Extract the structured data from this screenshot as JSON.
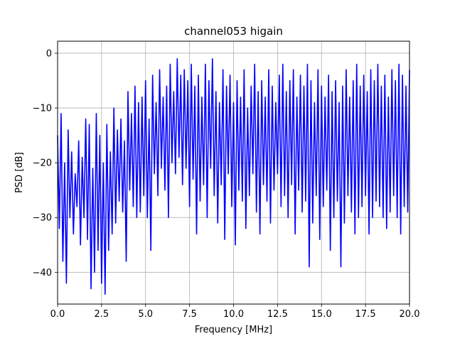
{
  "chart_data": {
    "type": "line",
    "title": "channel053 higain",
    "xlabel": "Frequency [MHz]",
    "ylabel": "PSD [dB]",
    "xlim": [
      0,
      20
    ],
    "ylim": [
      -45.8,
      2.2
    ],
    "grid": true,
    "series": [
      {
        "color": "#0000ff",
        "x": [
          0.0,
          0.1,
          0.2,
          0.3,
          0.4,
          0.5,
          0.6,
          0.7,
          0.8,
          0.9,
          1.0,
          1.1,
          1.2,
          1.3,
          1.4,
          1.5,
          1.6,
          1.7,
          1.8,
          1.9,
          2.0,
          2.1,
          2.2,
          2.3,
          2.4,
          2.5,
          2.6,
          2.7,
          2.8,
          2.9,
          3.0,
          3.1,
          3.2,
          3.3,
          3.4,
          3.5,
          3.6,
          3.7,
          3.8,
          3.9,
          4.0,
          4.1,
          4.2,
          4.3,
          4.4,
          4.5,
          4.6,
          4.7,
          4.8,
          4.9,
          5.0,
          5.1,
          5.2,
          5.3,
          5.4,
          5.5,
          5.6,
          5.7,
          5.8,
          5.9,
          6.0,
          6.1,
          6.2,
          6.3,
          6.4,
          6.5,
          6.6,
          6.7,
          6.8,
          6.9,
          7.0,
          7.1,
          7.2,
          7.3,
          7.4,
          7.5,
          7.6,
          7.7,
          7.8,
          7.9,
          8.0,
          8.1,
          8.2,
          8.3,
          8.4,
          8.5,
          8.6,
          8.7,
          8.8,
          8.9,
          9.0,
          9.1,
          9.2,
          9.3,
          9.4,
          9.5,
          9.6,
          9.7,
          9.8,
          9.9,
          10.0,
          10.1,
          10.2,
          10.3,
          10.4,
          10.5,
          10.6,
          10.7,
          10.8,
          10.9,
          11.0,
          11.1,
          11.2,
          11.3,
          11.4,
          11.5,
          11.6,
          11.7,
          11.8,
          11.9,
          12.0,
          12.1,
          12.2,
          12.3,
          12.4,
          12.5,
          12.6,
          12.7,
          12.8,
          12.9,
          13.0,
          13.1,
          13.2,
          13.3,
          13.4,
          13.5,
          13.6,
          13.7,
          13.8,
          13.9,
          14.0,
          14.1,
          14.2,
          14.3,
          14.4,
          14.5,
          14.6,
          14.7,
          14.8,
          14.9,
          15.0,
          15.1,
          15.2,
          15.3,
          15.4,
          15.5,
          15.6,
          15.7,
          15.8,
          15.9,
          16.0,
          16.1,
          16.2,
          16.3,
          16.4,
          16.5,
          16.6,
          16.7,
          16.8,
          16.9,
          17.0,
          17.1,
          17.2,
          17.3,
          17.4,
          17.5,
          17.6,
          17.7,
          17.8,
          17.9,
          18.0,
          18.1,
          18.2,
          18.3,
          18.4,
          18.5,
          18.6,
          18.7,
          18.8,
          18.9,
          19.0,
          19.1,
          19.2,
          19.3,
          19.4,
          19.5,
          19.6,
          19.7,
          19.8,
          19.9,
          20.0
        ],
        "y": [
          -15,
          -32,
          -11,
          -38,
          -20,
          -42,
          -14,
          -30,
          -18,
          -33,
          -22,
          -28,
          -16,
          -35,
          -19,
          -30,
          -12,
          -34,
          -13,
          -43,
          -21,
          -40,
          -11,
          -36,
          -15,
          -42,
          -20,
          -44,
          -13,
          -36,
          -18,
          -33,
          -10,
          -31,
          -14,
          -27,
          -12,
          -29,
          -16,
          -38,
          -7,
          -25,
          -11,
          -28,
          -6,
          -30,
          -9,
          -29,
          -8,
          -26,
          -5,
          -30,
          -12,
          -36,
          -4,
          -22,
          -9,
          -26,
          -3,
          -21,
          -8,
          -25,
          -6,
          -30,
          -2,
          -20,
          -7,
          -22,
          -1,
          -19,
          -4,
          -24,
          -3,
          -21,
          -5,
          -28,
          -2,
          -23,
          -6,
          -33,
          -4,
          -27,
          -8,
          -24,
          -2,
          -30,
          -5,
          -21,
          -1,
          -26,
          -7,
          -31,
          -9,
          -24,
          -3,
          -34,
          -6,
          -22,
          -4,
          -28,
          -9,
          -35,
          -5,
          -25,
          -8,
          -27,
          -3,
          -32,
          -10,
          -26,
          -6,
          -22,
          -2,
          -29,
          -7,
          -33,
          -5,
          -24,
          -8,
          -27,
          -3,
          -31,
          -6,
          -25,
          -9,
          -22,
          -4,
          -28,
          -2,
          -26,
          -7,
          -30,
          -5,
          -24,
          -3,
          -33,
          -8,
          -25,
          -4,
          -29,
          -6,
          -27,
          -2,
          -39,
          -5,
          -31,
          -9,
          -26,
          -3,
          -34,
          -6,
          -28,
          -8,
          -25,
          -4,
          -36,
          -7,
          -30,
          -5,
          -27,
          -9,
          -39,
          -6,
          -31,
          -3,
          -26,
          -8,
          -29,
          -5,
          -33,
          -2,
          -30,
          -6,
          -28,
          -4,
          -26,
          -7,
          -33,
          -3,
          -30,
          -5,
          -27,
          -2,
          -28,
          -6,
          -30,
          -4,
          -32,
          -8,
          -29,
          -3,
          -26,
          -5,
          -30,
          -2,
          -33,
          -4,
          -28,
          -6,
          -29,
          -3
        ]
      }
    ]
  }
}
